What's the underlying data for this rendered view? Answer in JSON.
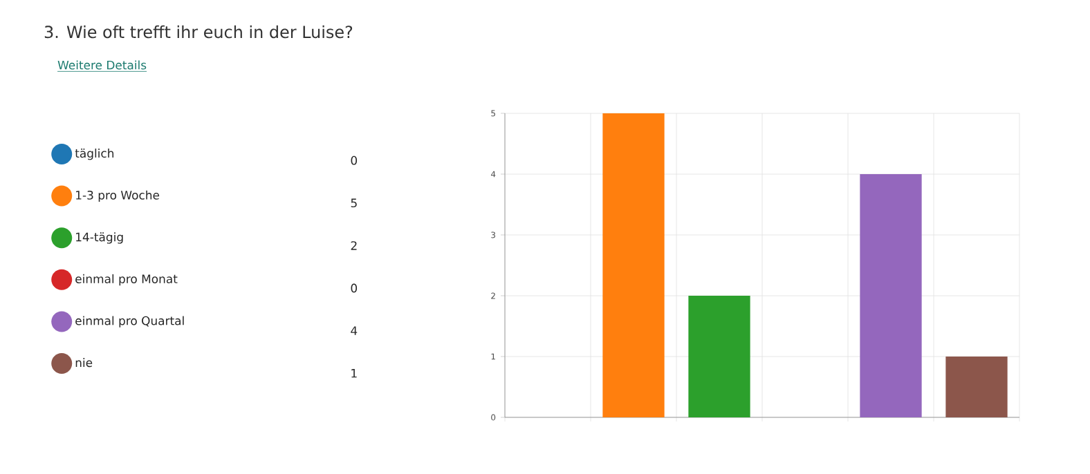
{
  "chart_data": {
    "type": "bar",
    "title": "3.  Wie oft trefft ihr euch in der Luise?",
    "subtitle": "Weitere Details",
    "categories": [
      null,
      null,
      null,
      null,
      null,
      null
    ],
    "series": [
      {
        "name": "täglich",
        "color": "#1f77b4",
        "values": [
          0,
          null,
          null,
          null,
          null,
          null
        ]
      },
      {
        "name": "1-3 pro Woche",
        "color": "#ff7f0e",
        "values": [
          null,
          5,
          null,
          null,
          null,
          null
        ]
      },
      {
        "name": "14-tägig",
        "color": "#2ca02c",
        "values": [
          null,
          null,
          2,
          null,
          null,
          null
        ]
      },
      {
        "name": "einmal pro Monat",
        "color": "#d62728",
        "values": [
          null,
          null,
          null,
          0,
          null,
          null
        ]
      },
      {
        "name": "einmal pro Quartal",
        "color": "#9467bd",
        "values": [
          null,
          null,
          null,
          null,
          4,
          null
        ]
      },
      {
        "name": "nie",
        "color": "#8c564b",
        "values": [
          null,
          null,
          null,
          null,
          null,
          1
        ]
      }
    ],
    "ylim": [
      0,
      5
    ],
    "yticks": [
      0,
      1,
      2,
      3,
      4,
      5
    ],
    "annotations": [
      "0",
      "5",
      "2",
      "0",
      "4",
      "1"
    ],
    "grid": true,
    "legend": "left",
    "tick_labels": "y"
  }
}
